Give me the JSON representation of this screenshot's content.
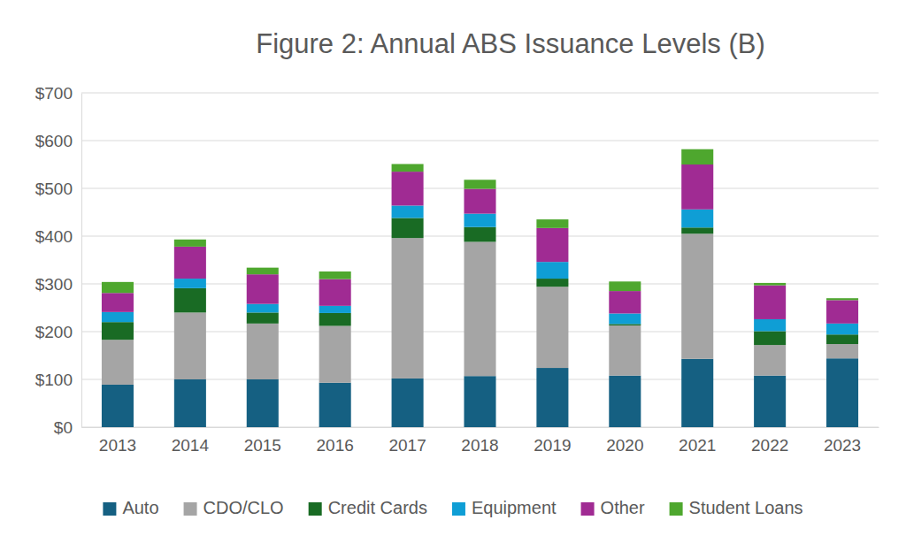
{
  "chart_data": {
    "type": "bar",
    "title": "Figure 2: Annual ABS Issuance Levels (B)",
    "categories": [
      "2013",
      "2014",
      "2015",
      "2016",
      "2017",
      "2018",
      "2019",
      "2020",
      "2021",
      "2022",
      "2023"
    ],
    "series": [
      {
        "name": "Auto",
        "color": "#156082",
        "values": [
          89,
          100,
          100,
          93,
          102,
          107,
          124,
          108,
          143,
          108,
          144
        ]
      },
      {
        "name": "CDO/CLO",
        "color": "#a5a5a5",
        "values": [
          94,
          140,
          117,
          119,
          294,
          281,
          170,
          105,
          262,
          64,
          30
        ]
      },
      {
        "name": "Credit Cards",
        "color": "#196b24",
        "values": [
          37,
          51,
          23,
          27,
          42,
          31,
          17,
          3,
          13,
          29,
          20
        ]
      },
      {
        "name": "Equipment",
        "color": "#0f9ed5",
        "values": [
          21,
          20,
          18,
          15,
          26,
          28,
          35,
          22,
          38,
          25,
          23
        ]
      },
      {
        "name": "Other",
        "color": "#a02b93",
        "values": [
          40,
          67,
          62,
          56,
          71,
          52,
          71,
          47,
          94,
          71,
          49
        ]
      },
      {
        "name": "Student Loans",
        "color": "#4ea72e",
        "values": [
          23,
          15,
          14,
          16,
          16,
          19,
          18,
          20,
          32,
          5,
          4
        ]
      }
    ],
    "stacked": true,
    "ylim": [
      0,
      700
    ],
    "yticks": [
      {
        "value": 0,
        "label": "$0"
      },
      {
        "value": 100,
        "label": "$100"
      },
      {
        "value": 200,
        "label": "$200"
      },
      {
        "value": 300,
        "label": "$300"
      },
      {
        "value": 400,
        "label": "$400"
      },
      {
        "value": 500,
        "label": "$500"
      },
      {
        "value": 600,
        "label": "$600"
      },
      {
        "value": 700,
        "label": "$700"
      }
    ],
    "grid": true,
    "legend": "bottom"
  }
}
